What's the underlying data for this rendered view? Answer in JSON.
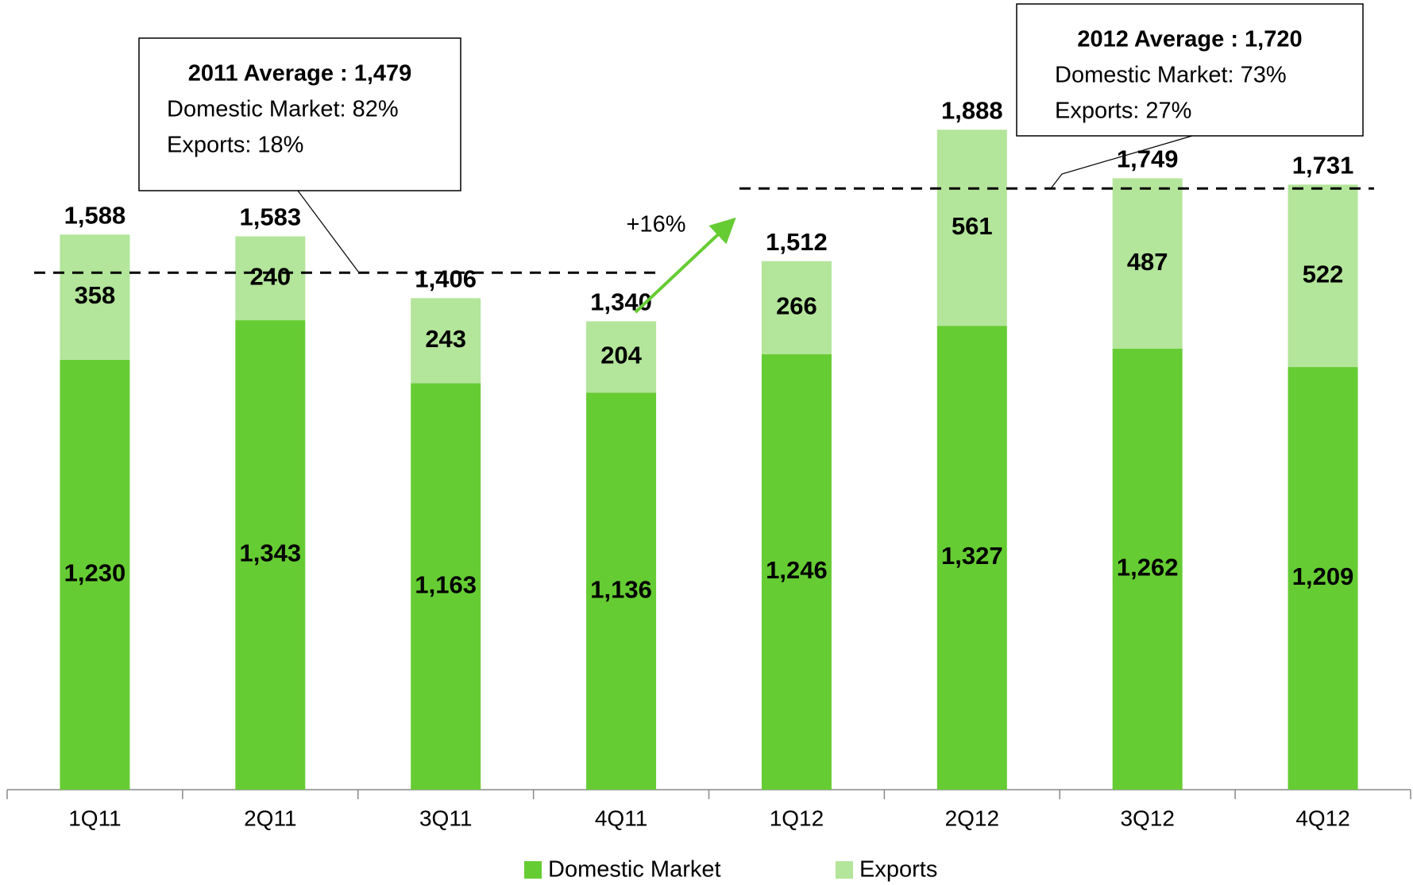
{
  "chart_data": {
    "type": "stacked-bar",
    "categories": [
      "1Q11",
      "2Q11",
      "3Q11",
      "4Q11",
      "1Q12",
      "2Q12",
      "3Q12",
      "4Q12"
    ],
    "series": [
      {
        "name": "Domestic Market",
        "color": "#66cc33",
        "values": [
          1230,
          1343,
          1163,
          1136,
          1246,
          1327,
          1262,
          1209
        ],
        "value_labels": [
          "1,230",
          "1,343",
          "1,163",
          "1,136",
          "1,246",
          "1,327",
          "1,262",
          "1,209"
        ]
      },
      {
        "name": "Exports",
        "color": "#b3e59a",
        "values": [
          358,
          240,
          243,
          204,
          266,
          561,
          487,
          522
        ]
      }
    ],
    "totals": [
      1588,
      1583,
      1406,
      1340,
      1512,
      1888,
      1749,
      1731
    ],
    "total_labels": [
      "1,588",
      "1,583",
      "1,406",
      "1,340",
      "1,512",
      "1,888",
      "1,749",
      "1,731"
    ],
    "averages": [
      {
        "title": "2011 Average : 1,479",
        "value": 1479,
        "lines": [
          "Domestic Market: 82%",
          "Exports: 18%"
        ]
      },
      {
        "title": "2012 Average : 1,720",
        "value": 1720,
        "lines": [
          "Domestic Market: 73%",
          "Exports: 27%"
        ]
      }
    ],
    "growth_label": "+16%",
    "legend": "bottom"
  }
}
